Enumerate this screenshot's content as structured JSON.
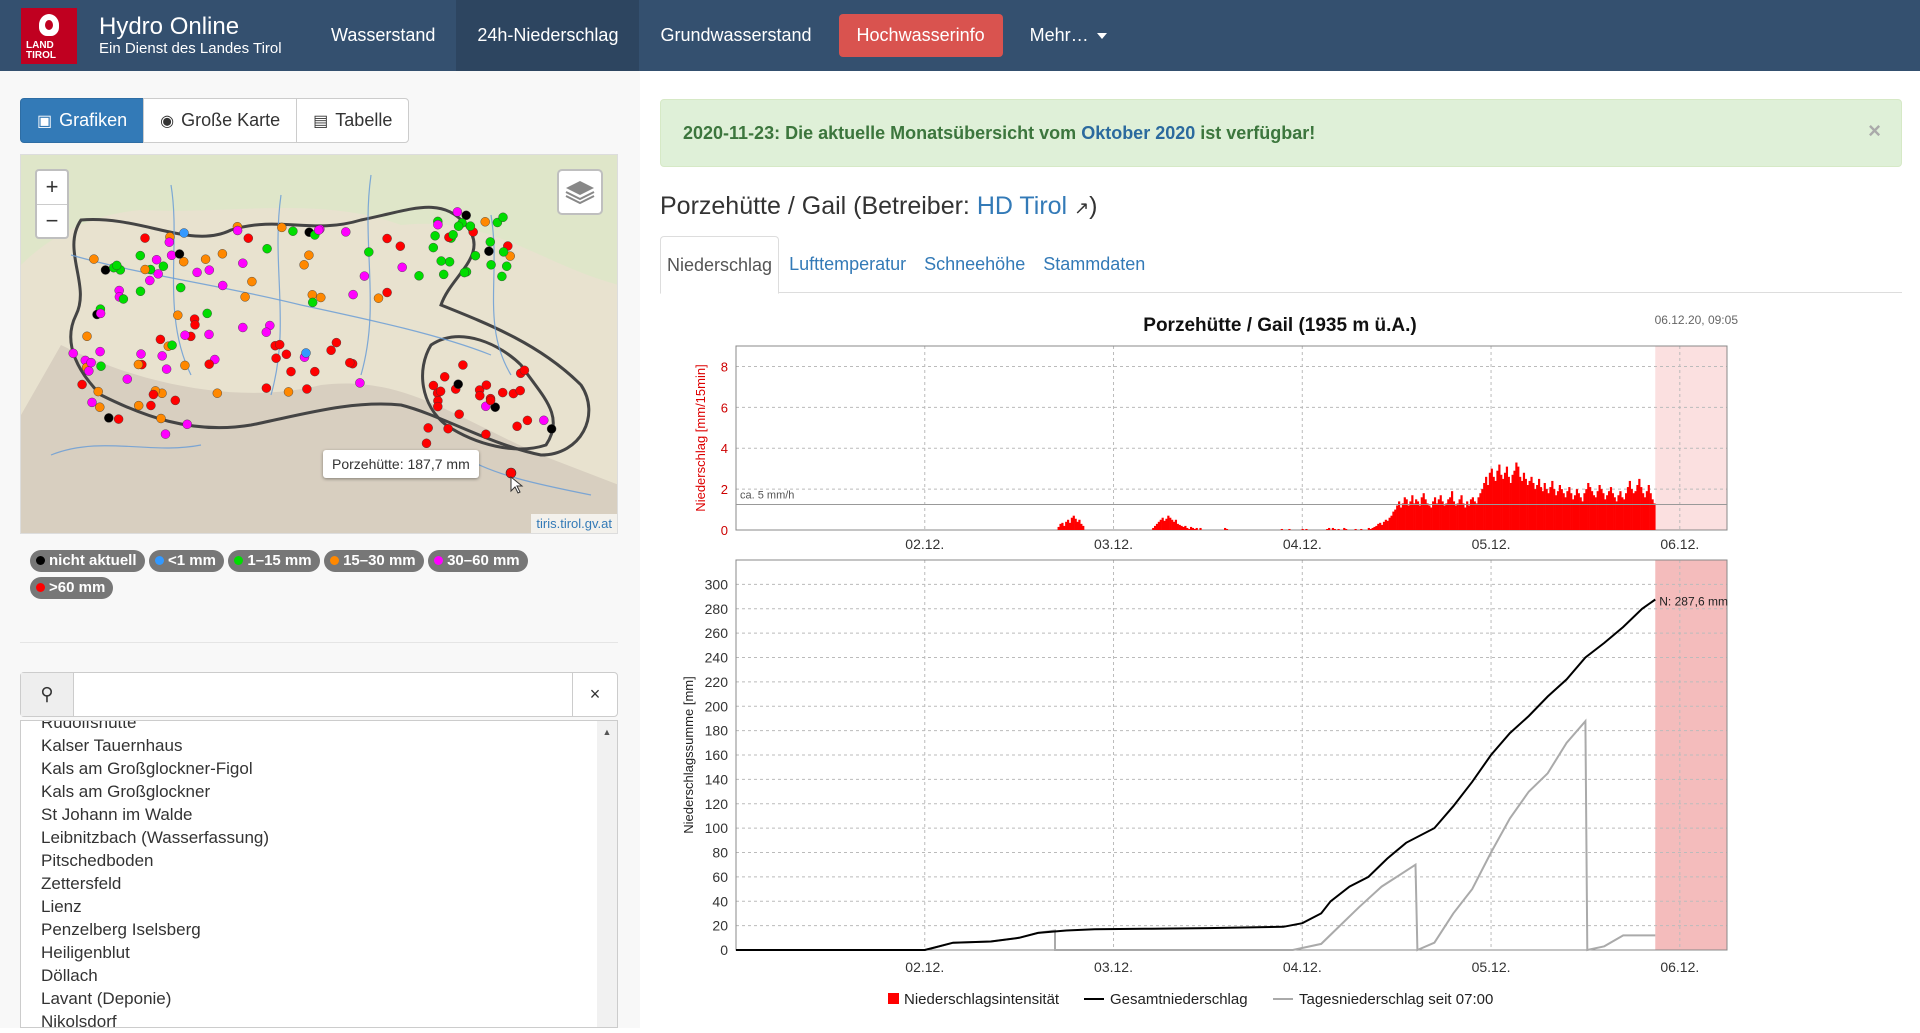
{
  "brand": {
    "logo_text": "LAND TIROL",
    "title": "Hydro Online",
    "subtitle": "Ein Dienst des Landes Tirol"
  },
  "nav": {
    "items": [
      {
        "label": "Wasserstand"
      },
      {
        "label": "24h-Niederschlag",
        "active": true
      },
      {
        "label": "Grundwasserstand"
      },
      {
        "label": "Hochwasserinfo",
        "style": "danger"
      },
      {
        "label": "Mehr…"
      }
    ]
  },
  "view_buttons": {
    "grafiken": "Grafiken",
    "karte": "Große Karte",
    "tabelle": "Tabelle"
  },
  "map": {
    "zoom_in": "+",
    "zoom_out": "−",
    "tooltip": "Porzehütte: 187,7 mm",
    "attribution": "tiris.tirol.gv.at",
    "legend": [
      {
        "label": "nicht aktuell",
        "color": "#000000"
      },
      {
        "label": "<1 mm",
        "color": "#3399ff"
      },
      {
        "label": "1–15 mm",
        "color": "#00dd00"
      },
      {
        "label": "15–30 mm",
        "color": "#ff8800"
      },
      {
        "label": "30–60 mm",
        "color": "#ff00ff"
      },
      {
        "label": ">60 mm",
        "color": "#ff0000"
      }
    ]
  },
  "search": {
    "value": "",
    "clear": "×"
  },
  "stations": [
    "Rudolfshütte",
    "Kalser Tauernhaus",
    "Kals am Großglockner-Figol",
    "Kals am Großglockner",
    "St Johann im Walde",
    "Leibnitzbach (Wasserfassung)",
    "Pitschedboden",
    "Zettersfeld",
    "Lienz",
    "Penzelberg Iselsberg",
    "Heiligenblut",
    "Döllach",
    "Lavant (Deponie)",
    "Nikolsdorf"
  ],
  "alert": {
    "date": "2020-11-23:",
    "text_before": "Die aktuelle Monatsübersicht vom",
    "link": "Oktober 2020",
    "text_after": "ist verfügbar!",
    "close": "×"
  },
  "station": {
    "name": "Porzehütte / Gail (Betreiber:",
    "operator": "HD Tirol",
    "close_paren": ")"
  },
  "tabs": [
    "Niederschlag",
    "Lufttemperatur",
    "Schneehöhe",
    "Stammdaten"
  ],
  "chart_data": [
    {
      "type": "bar",
      "title": "Porzehütte / Gail (1935 m ü.A.)",
      "timestamp": "06.12.20, 09:05",
      "ylabel": "Niederschlag [mm/15min]",
      "ylim": [
        0,
        9
      ],
      "yticks": [
        0,
        2,
        4,
        6,
        8
      ],
      "xticks": [
        "02.12.",
        "03.12.",
        "04.12.",
        "05.12.",
        "06.12."
      ],
      "reference_label": "ca. 5 mm/h",
      "reference_value": 1.25,
      "color": "#ff0000",
      "series": [
        {
          "values": [
            0,
            0,
            0,
            0,
            0,
            0,
            0,
            0,
            0,
            0,
            0,
            0,
            0,
            0,
            0,
            0,
            0,
            0,
            0,
            0,
            0,
            0,
            0,
            0,
            0,
            0,
            0,
            0,
            0,
            0,
            0,
            0,
            0,
            0,
            0,
            0,
            0,
            0,
            0,
            0,
            0,
            0,
            0,
            0,
            0,
            0,
            0,
            0,
            0,
            0,
            0,
            0,
            0,
            0,
            0,
            0,
            0,
            0,
            0,
            0,
            0,
            0,
            0,
            0,
            0,
            0,
            0,
            0,
            0,
            0,
            0,
            0,
            0,
            0,
            0,
            0,
            0,
            0,
            0,
            0,
            0,
            0,
            0,
            0,
            0,
            0,
            0,
            0,
            0,
            0,
            0,
            0,
            0,
            0,
            0,
            0,
            0,
            0,
            0,
            0,
            0,
            0,
            0,
            0,
            0,
            0,
            0,
            0,
            0,
            0,
            0,
            0,
            0,
            0,
            0,
            0,
            0,
            0,
            0,
            0,
            0,
            0,
            0,
            0,
            0,
            0,
            0,
            0,
            0,
            0,
            0,
            0,
            0,
            0,
            0,
            0,
            0,
            0,
            0,
            0,
            0,
            0,
            0,
            0,
            0,
            0,
            0,
            0,
            0,
            0,
            0,
            0,
            0,
            0,
            0,
            0,
            0,
            0,
            0,
            0,
            0,
            0,
            0,
            0,
            0,
            0,
            0,
            0,
            0,
            0,
            0.15,
            0.3,
            0.35,
            0.2,
            0.4,
            0.5,
            0.35,
            0.6,
            0.7,
            0.55,
            0.4,
            0.5,
            0.3,
            0.2,
            0,
            0,
            0,
            0,
            0,
            0,
            0,
            0,
            0,
            0,
            0,
            0,
            0,
            0,
            0,
            0,
            0,
            0,
            0,
            0,
            0,
            0,
            0,
            0,
            0,
            0,
            0,
            0,
            0,
            0,
            0,
            0,
            0,
            0,
            0,
            0,
            0.1,
            0.2,
            0.3,
            0.4,
            0.5,
            0.6,
            0.45,
            0.55,
            0.7,
            0.6,
            0.5,
            0.4,
            0.5,
            0.3,
            0.25,
            0.2,
            0.15,
            0.2,
            0.1,
            0.05,
            0.15,
            0.1,
            0.05,
            0.1,
            0,
            0.1,
            0,
            0,
            0,
            0,
            0,
            0,
            0,
            0,
            0,
            0,
            0,
            0,
            0.1,
            0.05,
            0,
            0,
            0,
            0,
            0,
            0,
            0,
            0,
            0,
            0,
            0,
            0,
            0,
            0,
            0,
            0,
            0,
            0,
            0,
            0,
            0,
            0,
            0,
            0,
            0,
            0,
            0,
            0,
            0.05,
            0,
            0,
            0,
            0.05,
            0,
            0,
            0,
            0,
            0,
            0,
            0.05,
            0,
            0.05,
            0,
            0,
            0,
            0,
            0,
            0,
            0,
            0,
            0,
            0,
            0.05,
            0.1,
            0,
            0.1,
            0.05,
            0,
            0.05,
            0,
            0,
            0.1,
            0.05,
            0,
            0,
            0,
            0,
            0.05,
            0,
            0,
            0.05,
            0,
            0,
            0,
            0.1,
            0.05,
            0.1,
            0.15,
            0.2,
            0.3,
            0.35,
            0.25,
            0.4,
            0.5,
            0.45,
            0.6,
            0.7,
            0.9,
            1.0,
            1.2,
            1.4,
            1.1,
            1.3,
            1.6,
            1.5,
            1.2,
            1.4,
            1.7,
            1.3,
            1.5,
            1.4,
            1.2,
            1.6,
            1.8,
            1.5,
            1.3,
            1.2,
            1.1,
            1.4,
            1.6,
            1.3,
            1.5,
            1.7,
            1.4,
            1.2,
            1.3,
            1.5,
            1.6,
            1.9,
            1.4,
            1.2,
            1.3,
            1.5,
            1.7,
            1.3,
            1.1,
            1.4,
            1.2,
            1.5,
            1.6,
            1.4,
            1.3,
            1.6,
            1.8,
            2.0,
            2.3,
            2.6,
            2.2,
            2.8,
            3.0,
            2.6,
            2.4,
            2.9,
            3.2,
            2.7,
            2.5,
            2.8,
            3.1,
            2.6,
            2.3,
            2.7,
            2.9,
            3.3,
            3.1,
            2.6,
            2.4,
            2.8,
            2.5,
            2.2,
            2.4,
            2.6,
            2.3,
            2.0,
            2.2,
            2.5,
            2.1,
            1.9,
            2.3,
            2.0,
            1.8,
            2.1,
            2.4,
            2.0,
            1.7,
            1.9,
            2.2,
            2.0,
            1.8,
            1.6,
            1.9,
            2.1,
            1.8,
            1.5,
            1.7,
            2.0,
            1.8,
            1.6,
            1.4,
            1.8,
            2.0,
            2.3,
            2.1,
            1.9,
            1.7,
            1.6,
            1.9,
            2.2,
            2.0,
            1.8,
            1.5,
            1.7,
            1.9,
            2.1,
            1.8,
            1.6,
            1.4,
            1.7,
            1.9,
            1.6,
            1.5,
            1.8,
            2.1,
            2.4,
            2.0,
            1.8,
            1.9,
            2.2,
            2.5,
            2.1,
            1.8,
            1.6,
            1.9,
            2.2,
            1.8,
            1.5,
            1.3
          ]
        }
      ]
    },
    {
      "type": "line",
      "ylabel": "Niederschlagssumme [mm]",
      "ylim": [
        0,
        320
      ],
      "yticks": [
        0,
        20,
        40,
        60,
        80,
        100,
        120,
        140,
        160,
        180,
        200,
        220,
        240,
        260,
        280,
        300
      ],
      "xticks": [
        "02.12.",
        "03.12.",
        "04.12.",
        "05.12.",
        "06.12."
      ],
      "end_label": "N: 287,6 mm",
      "legend": [
        "Niederschlagsintensität",
        "Gesamtniederschlag",
        "Tagesniederschlag seit 07:00"
      ],
      "series": [
        {
          "name": "Gesamtniederschlag",
          "color": "#000000",
          "points": [
            [
              0,
              0
            ],
            [
              1.0,
              0
            ],
            [
              1.05,
              2
            ],
            [
              1.15,
              6
            ],
            [
              1.35,
              7
            ],
            [
              1.5,
              10
            ],
            [
              1.6,
              14
            ],
            [
              1.75,
              16
            ],
            [
              1.9,
              17
            ],
            [
              2.2,
              17.5
            ],
            [
              2.5,
              18
            ],
            [
              2.9,
              19
            ],
            [
              3.0,
              22
            ],
            [
              3.1,
              30
            ],
            [
              3.15,
              40
            ],
            [
              3.25,
              52
            ],
            [
              3.35,
              60
            ],
            [
              3.45,
              75
            ],
            [
              3.55,
              88
            ],
            [
              3.7,
              100
            ],
            [
              3.8,
              118
            ],
            [
              3.9,
              138
            ],
            [
              4.0,
              160
            ],
            [
              4.1,
              178
            ],
            [
              4.2,
              192
            ],
            [
              4.3,
              208
            ],
            [
              4.4,
              222
            ],
            [
              4.5,
              240
            ],
            [
              4.6,
              252
            ],
            [
              4.7,
              265
            ],
            [
              4.8,
              280
            ],
            [
              4.87,
              287.6
            ]
          ]
        },
        {
          "name": "Tagesniederschlag seit 07:00",
          "color": "#aaaaaa",
          "points": [
            [
              0,
              0
            ],
            [
              1.0,
              0
            ],
            [
              1.05,
              2
            ],
            [
              1.15,
              6
            ],
            [
              1.35,
              7
            ],
            [
              1.5,
              10
            ],
            [
              1.6,
              14
            ],
            [
              1.69,
              16
            ],
            [
              1.69,
              0
            ],
            [
              2.5,
              0
            ],
            [
              2.95,
              0
            ],
            [
              3.1,
              5
            ],
            [
              3.2,
              20
            ],
            [
              3.3,
              35
            ],
            [
              3.42,
              52
            ],
            [
              3.5,
              60
            ],
            [
              3.6,
              70
            ],
            [
              3.61,
              0
            ],
            [
              3.7,
              6
            ],
            [
              3.8,
              30
            ],
            [
              3.9,
              50
            ],
            [
              4.0,
              80
            ],
            [
              4.1,
              108
            ],
            [
              4.2,
              130
            ],
            [
              4.3,
              145
            ],
            [
              4.4,
              170
            ],
            [
              4.5,
              187.7
            ],
            [
              4.51,
              0
            ],
            [
              4.6,
              3
            ],
            [
              4.7,
              12
            ],
            [
              4.87,
              12
            ]
          ]
        }
      ],
      "forecast_shade_from": 4.87,
      "x_range": [
        0,
        5.25
      ]
    }
  ]
}
